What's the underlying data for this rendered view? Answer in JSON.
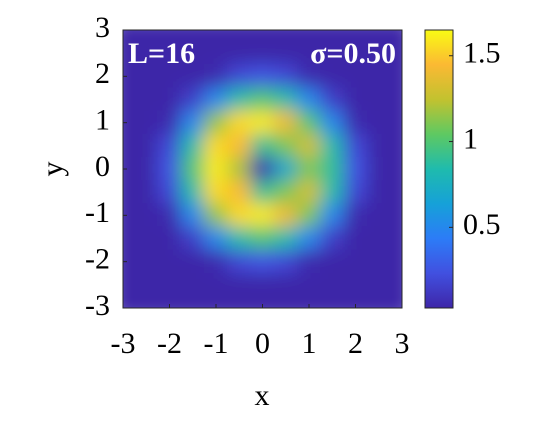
{
  "chart_data": {
    "type": "contour",
    "annotations": [
      "L=16",
      "σ=0.50"
    ],
    "xlabel": "x",
    "ylabel": "y",
    "x": [
      -3,
      -2.5,
      -2,
      -1.5,
      -1,
      -0.5,
      0,
      0.5,
      1,
      1.5,
      2,
      2.5,
      3
    ],
    "y": [
      3,
      2.5,
      2,
      1.5,
      1,
      0.5,
      0,
      -0.5,
      -1,
      -1.5,
      -2,
      -2.5,
      -3
    ],
    "z": [
      [
        0.03,
        0.03,
        0.03,
        0.03,
        0.03,
        0.03,
        0.03,
        0.03,
        0.03,
        0.03,
        0.03,
        0.03,
        0.03
      ],
      [
        0.03,
        0.03,
        0.03,
        0.03,
        0.03,
        0.03,
        0.03,
        0.03,
        0.03,
        0.03,
        0.03,
        0.03,
        0.03
      ],
      [
        0.03,
        0.03,
        0.03,
        0.03,
        0.05,
        0.2,
        0.25,
        0.2,
        0.05,
        0.03,
        0.03,
        0.03,
        0.03
      ],
      [
        0.03,
        0.03,
        0.03,
        0.15,
        0.5,
        0.85,
        1.0,
        0.85,
        0.5,
        0.15,
        0.03,
        0.03,
        0.03
      ],
      [
        0.03,
        0.03,
        0.05,
        0.5,
        1.15,
        1.55,
        1.6,
        1.4,
        1.0,
        0.5,
        0.05,
        0.03,
        0.03
      ],
      [
        0.03,
        0.03,
        0.2,
        0.85,
        1.55,
        1.45,
        0.9,
        1.1,
        1.3,
        0.85,
        0.2,
        0.03,
        0.03
      ],
      [
        0.03,
        0.03,
        0.25,
        1.0,
        1.6,
        1.2,
        0.05,
        0.7,
        1.1,
        0.9,
        0.25,
        0.03,
        0.03
      ],
      [
        0.03,
        0.03,
        0.2,
        0.85,
        1.55,
        1.45,
        0.9,
        1.1,
        1.3,
        0.85,
        0.2,
        0.03,
        0.03
      ],
      [
        0.03,
        0.03,
        0.05,
        0.5,
        1.15,
        1.55,
        1.6,
        1.4,
        1.1,
        0.5,
        0.05,
        0.03,
        0.03
      ],
      [
        0.03,
        0.03,
        0.03,
        0.15,
        0.5,
        0.85,
        1.0,
        0.85,
        0.5,
        0.15,
        0.03,
        0.03,
        0.03
      ],
      [
        0.03,
        0.03,
        0.03,
        0.03,
        0.05,
        0.2,
        0.25,
        0.2,
        0.05,
        0.03,
        0.03,
        0.03,
        0.03
      ],
      [
        0.03,
        0.03,
        0.03,
        0.03,
        0.03,
        0.03,
        0.03,
        0.03,
        0.03,
        0.03,
        0.03,
        0.03,
        0.03
      ],
      [
        0.03,
        0.03,
        0.03,
        0.03,
        0.03,
        0.03,
        0.03,
        0.03,
        0.03,
        0.03,
        0.03,
        0.03,
        0.03
      ]
    ],
    "xlim": [
      -3,
      3
    ],
    "ylim": [
      -3,
      3
    ],
    "xticks": [
      -3,
      -2,
      -1,
      0,
      1,
      2,
      3
    ],
    "yticks": [
      -3,
      -2,
      -1,
      0,
      1,
      2,
      3
    ],
    "clim": [
      0.03,
      1.65
    ],
    "cticks": [
      0.5,
      1,
      1.5
    ],
    "colormap": [
      "#3e26a8",
      "#4150e0",
      "#2c7cf7",
      "#16a1d8",
      "#1fbbad",
      "#5ec962",
      "#c2c22f",
      "#fbb933",
      "#f9fb14"
    ]
  }
}
